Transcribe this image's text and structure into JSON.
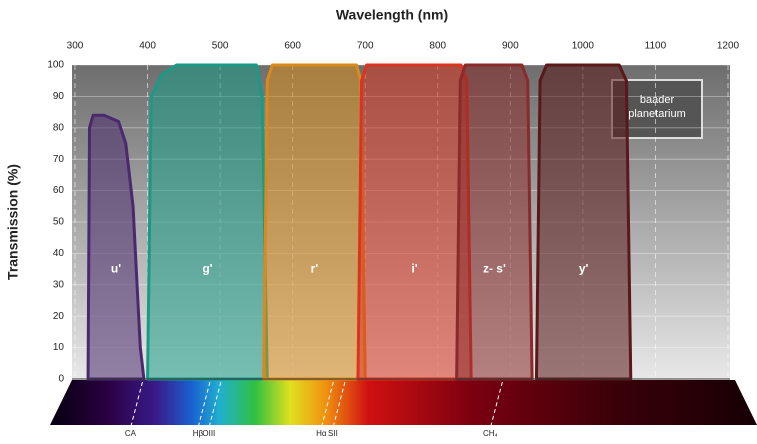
{
  "chart_data": {
    "type": "area",
    "title": "Wavelength (nm)",
    "y_label": "Transmission (%)",
    "xlim": [
      300,
      1200
    ],
    "xticks": [
      300,
      400,
      500,
      600,
      700,
      800,
      900,
      1000,
      1100,
      1200
    ],
    "ylim": [
      0,
      100
    ],
    "yticks": [
      0,
      10,
      20,
      30,
      40,
      50,
      60,
      70,
      80,
      90,
      100
    ],
    "grid": true,
    "series": [
      {
        "name": "u'",
        "color": "#4a2a6e",
        "x": [
          318,
          320,
          325,
          340,
          360,
          370,
          380,
          390,
          395
        ],
        "values": [
          0,
          80,
          84,
          84,
          82,
          75,
          55,
          10,
          0
        ]
      },
      {
        "name": "g'",
        "color": "#1a9a86",
        "x": [
          400,
          405,
          420,
          440,
          550,
          558,
          565
        ],
        "values": [
          0,
          90,
          97,
          100,
          100,
          90,
          0
        ]
      },
      {
        "name": "r'",
        "color": "#d98a1c",
        "x": [
          560,
          565,
          572,
          688,
          694,
          700
        ],
        "values": [
          0,
          95,
          100,
          100,
          95,
          0
        ]
      },
      {
        "name": "i'",
        "color": "#d83420",
        "x": [
          690,
          695,
          702,
          832,
          840,
          846
        ],
        "values": [
          0,
          95,
          100,
          100,
          95,
          0
        ]
      },
      {
        "name": "z- s'",
        "color": "#8a2a2a",
        "x": [
          826,
          831,
          838,
          916,
          924,
          930
        ],
        "values": [
          0,
          95,
          100,
          100,
          95,
          0
        ]
      },
      {
        "name": "y'",
        "color": "#5a1818",
        "x": [
          936,
          941,
          950,
          1050,
          1060,
          1066
        ],
        "values": [
          0,
          95,
          100,
          100,
          95,
          0
        ]
      }
    ],
    "markers": [
      {
        "label": "CA",
        "x": 393
      },
      {
        "label": "Hβ",
        "x": 486
      },
      {
        "label": "OIII",
        "x": 501
      },
      {
        "label": "Hα",
        "x": 656
      },
      {
        "label": "SII",
        "x": 672
      },
      {
        "label": "CH₄",
        "x": 889
      }
    ],
    "logo": [
      "baader",
      "planetarium"
    ]
  }
}
